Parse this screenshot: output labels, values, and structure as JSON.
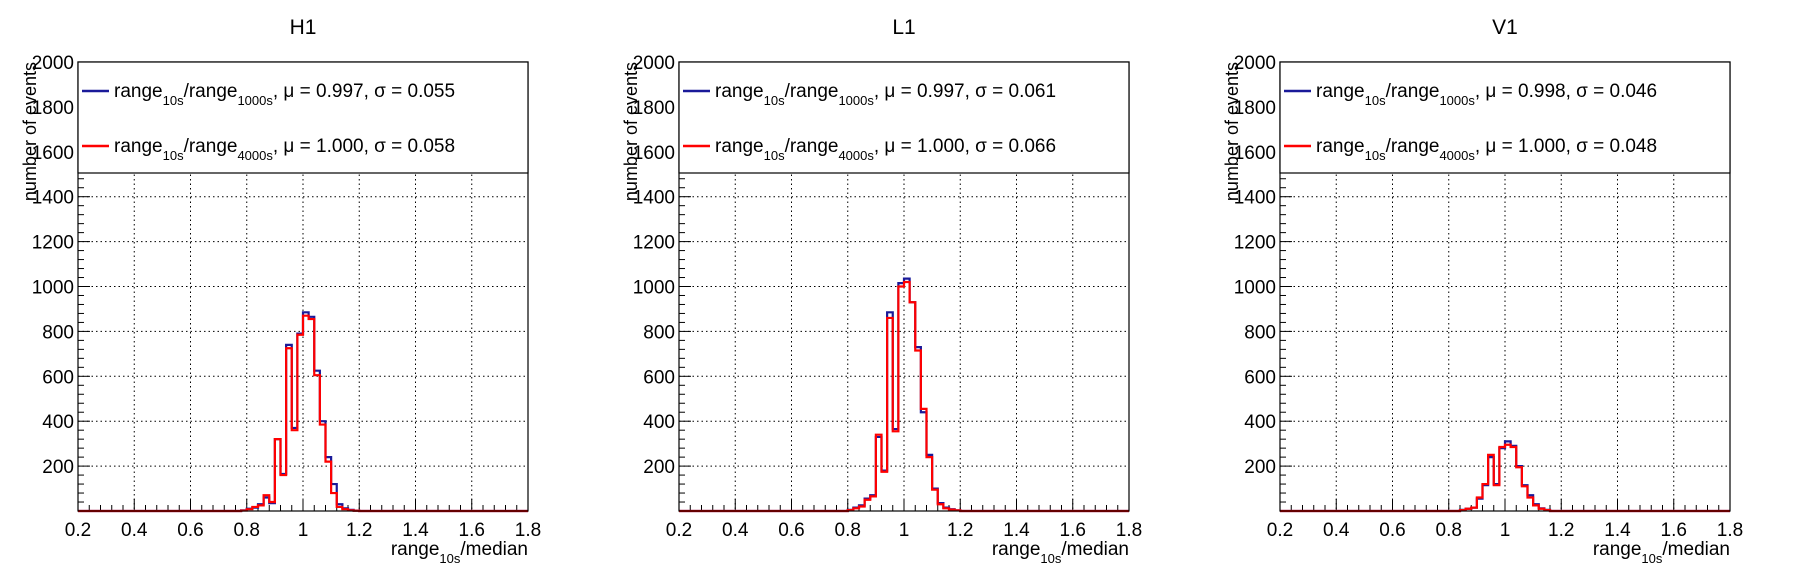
{
  "figure": {
    "background": "#ffffff"
  },
  "colors": {
    "series1": "#1a1a99",
    "series2": "#ff0000",
    "grid": "#000000"
  },
  "chart_data": [
    {
      "type": "histogram",
      "title": "H1",
      "xlabel": {
        "base": "range",
        "sub": "10s",
        "rest": "/median"
      },
      "ylabel": "number of events",
      "xlim": [
        0.2,
        1.8
      ],
      "ylim": [
        0,
        2000
      ],
      "bin_width": 0.02,
      "x_ticks": [
        "0.2",
        "0.4",
        "0.6",
        "0.8",
        "1",
        "1.2",
        "1.4",
        "1.6",
        "1.8"
      ],
      "y_ticks": [
        "200",
        "400",
        "600",
        "800",
        "1000",
        "1200",
        "1400",
        "1600",
        "1800",
        "2000"
      ],
      "grid": true,
      "legend": {
        "placement": "top"
      },
      "series": [
        {
          "name": "range10s/range1000s, μ = 0.997, σ = 0.055",
          "legend": {
            "base": "range",
            "sub1": "10s",
            "mid": "/range",
            "sub2": "1000s",
            "rest": ", μ = 0.997, σ = 0.055"
          },
          "color": "#1a1a99",
          "bins": [
            [
              0.78,
              3
            ],
            [
              0.8,
              10
            ],
            [
              0.82,
              15
            ],
            [
              0.84,
              30
            ],
            [
              0.86,
              60
            ],
            [
              0.88,
              35
            ],
            [
              0.9,
              320
            ],
            [
              0.92,
              165
            ],
            [
              0.94,
              740
            ],
            [
              0.96,
              370
            ],
            [
              0.98,
              790
            ],
            [
              1.0,
              885
            ],
            [
              1.02,
              865
            ],
            [
              1.04,
              625
            ],
            [
              1.06,
              400
            ],
            [
              1.08,
              240
            ],
            [
              1.1,
              120
            ],
            [
              1.12,
              30
            ],
            [
              1.14,
              12
            ],
            [
              1.16,
              5
            ],
            [
              1.18,
              2
            ]
          ]
        },
        {
          "name": "range10s/range4000s, μ = 1.000, σ = 0.058",
          "legend": {
            "base": "range",
            "sub1": "10s",
            "mid": "/range",
            "sub2": "4000s",
            "rest": ", μ = 1.000, σ = 0.058"
          },
          "color": "#ff0000",
          "bins": [
            [
              0.78,
              2
            ],
            [
              0.8,
              8
            ],
            [
              0.82,
              18
            ],
            [
              0.84,
              25
            ],
            [
              0.86,
              70
            ],
            [
              0.88,
              40
            ],
            [
              0.9,
              320
            ],
            [
              0.92,
              160
            ],
            [
              0.94,
              725
            ],
            [
              0.96,
              360
            ],
            [
              0.98,
              785
            ],
            [
              1.0,
              870
            ],
            [
              1.02,
              855
            ],
            [
              1.04,
              605
            ],
            [
              1.06,
              385
            ],
            [
              1.08,
              220
            ],
            [
              1.1,
              80
            ],
            [
              1.12,
              18
            ],
            [
              1.14,
              8
            ],
            [
              1.16,
              3
            ],
            [
              1.18,
              1
            ]
          ]
        }
      ]
    },
    {
      "type": "histogram",
      "title": "L1",
      "xlabel": {
        "base": "range",
        "sub": "10s",
        "rest": "/median"
      },
      "ylabel": "number of events",
      "xlim": [
        0.2,
        1.8
      ],
      "ylim": [
        0,
        2000
      ],
      "bin_width": 0.02,
      "x_ticks": [
        "0.2",
        "0.4",
        "0.6",
        "0.8",
        "1",
        "1.2",
        "1.4",
        "1.6",
        "1.8"
      ],
      "y_ticks": [
        "200",
        "400",
        "600",
        "800",
        "1000",
        "1200",
        "1400",
        "1600",
        "1800",
        "2000"
      ],
      "grid": true,
      "legend": {
        "placement": "top"
      },
      "series": [
        {
          "name": "range10s/range1000s, μ = 0.997, σ = 0.061",
          "legend": {
            "base": "range",
            "sub1": "10s",
            "mid": "/range",
            "sub2": "1000s",
            "rest": ", μ = 0.997, σ = 0.061"
          },
          "color": "#1a1a99",
          "bins": [
            [
              0.8,
              5
            ],
            [
              0.82,
              15
            ],
            [
              0.84,
              25
            ],
            [
              0.86,
              55
            ],
            [
              0.88,
              70
            ],
            [
              0.9,
              330
            ],
            [
              0.92,
              180
            ],
            [
              0.94,
              885
            ],
            [
              0.96,
              365
            ],
            [
              0.98,
              1015
            ],
            [
              1.0,
              1035
            ],
            [
              1.02,
              930
            ],
            [
              1.04,
              730
            ],
            [
              1.06,
              440
            ],
            [
              1.08,
              250
            ],
            [
              1.1,
              100
            ],
            [
              1.12,
              35
            ],
            [
              1.14,
              15
            ],
            [
              1.16,
              8
            ],
            [
              1.18,
              3
            ]
          ]
        },
        {
          "name": "range10s/range4000s, μ = 1.000, σ = 0.066",
          "legend": {
            "base": "range",
            "sub1": "10s",
            "mid": "/range",
            "sub2": "4000s",
            "rest": ", μ = 1.000, σ = 0.066"
          },
          "color": "#ff0000",
          "bins": [
            [
              0.8,
              4
            ],
            [
              0.82,
              12
            ],
            [
              0.84,
              20
            ],
            [
              0.86,
              50
            ],
            [
              0.88,
              65
            ],
            [
              0.9,
              340
            ],
            [
              0.92,
              175
            ],
            [
              0.94,
              860
            ],
            [
              0.96,
              355
            ],
            [
              0.98,
              1000
            ],
            [
              1.0,
              1020
            ],
            [
              1.02,
              930
            ],
            [
              1.04,
              715
            ],
            [
              1.06,
              455
            ],
            [
              1.08,
              240
            ],
            [
              1.1,
              95
            ],
            [
              1.12,
              30
            ],
            [
              1.14,
              12
            ],
            [
              1.16,
              6
            ],
            [
              1.18,
              3
            ]
          ]
        }
      ]
    },
    {
      "type": "histogram",
      "title": "V1",
      "xlabel": {
        "base": "range",
        "sub": "10s",
        "rest": "/median"
      },
      "ylabel": "number of events",
      "xlim": [
        0.2,
        1.8
      ],
      "ylim": [
        0,
        2000
      ],
      "bin_width": 0.02,
      "x_ticks": [
        "0.2",
        "0.4",
        "0.6",
        "0.8",
        "1",
        "1.2",
        "1.4",
        "1.6",
        "1.8"
      ],
      "y_ticks": [
        "200",
        "400",
        "600",
        "800",
        "1000",
        "1200",
        "1400",
        "1600",
        "1800",
        "2000"
      ],
      "grid": true,
      "legend": {
        "placement": "top"
      },
      "series": [
        {
          "name": "range10s/range1000s, μ = 0.998, σ = 0.046",
          "legend": {
            "base": "range",
            "sub1": "10s",
            "mid": "/range",
            "sub2": "1000s",
            "rest": ", μ = 0.998, σ = 0.046"
          },
          "color": "#1a1a99",
          "bins": [
            [
              0.84,
              5
            ],
            [
              0.86,
              10
            ],
            [
              0.88,
              15
            ],
            [
              0.9,
              55
            ],
            [
              0.92,
              115
            ],
            [
              0.94,
              240
            ],
            [
              0.96,
              120
            ],
            [
              0.98,
              280
            ],
            [
              1.0,
              310
            ],
            [
              1.02,
              290
            ],
            [
              1.04,
              200
            ],
            [
              1.06,
              115
            ],
            [
              1.08,
              70
            ],
            [
              1.1,
              30
            ],
            [
              1.12,
              12
            ],
            [
              1.14,
              5
            ]
          ]
        },
        {
          "name": "range10s/range4000s, μ = 1.000, σ = 0.048",
          "legend": {
            "base": "range",
            "sub1": "10s",
            "mid": "/range",
            "sub2": "4000s",
            "rest": ", μ = 1.000, σ = 0.048"
          },
          "color": "#ff0000",
          "bins": [
            [
              0.84,
              4
            ],
            [
              0.86,
              10
            ],
            [
              0.88,
              15
            ],
            [
              0.9,
              60
            ],
            [
              0.92,
              120
            ],
            [
              0.94,
              250
            ],
            [
              0.96,
              115
            ],
            [
              0.98,
              285
            ],
            [
              1.0,
              295
            ],
            [
              1.02,
              285
            ],
            [
              1.04,
              195
            ],
            [
              1.06,
              110
            ],
            [
              1.08,
              60
            ],
            [
              1.1,
              25
            ],
            [
              1.12,
              10
            ],
            [
              1.14,
              4
            ]
          ]
        }
      ]
    }
  ]
}
